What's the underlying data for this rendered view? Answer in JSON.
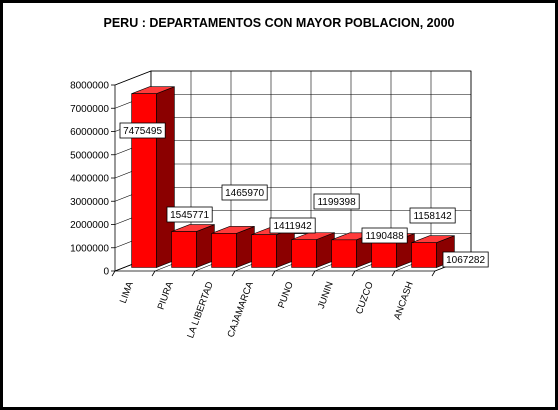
{
  "chart_data": {
    "type": "bar",
    "title": "PERU :  DEPARTAMENTOS CON MAYOR POBLACION, 2000",
    "categories": [
      "LIMA",
      "PIURA",
      "LA LIBERTAD",
      "CAJAMARCA",
      "PUNO",
      "JUNIN",
      "CUZCO",
      "ANCASH"
    ],
    "values": [
      7475495,
      1545771,
      1465970,
      1411942,
      1199398,
      1190488,
      1158142,
      1067282
    ],
    "data_labels": [
      "7475495",
      "1545771",
      "1465970",
      "1411942",
      "1199398",
      "1190488",
      "1158142",
      "1067282"
    ],
    "y_ticks": [
      "0",
      "1000000",
      "2000000",
      "3000000",
      "4000000",
      "5000000",
      "6000000",
      "7000000",
      "8000000"
    ],
    "ylim": [
      0,
      8000000
    ],
    "xlabel": "",
    "ylabel": "",
    "grid": true,
    "style": "3d-column",
    "colors": {
      "bar_front": "#ff0000",
      "bar_top": "#ff3b3b",
      "bar_side": "#8b0000",
      "background": "#000000",
      "plot": "#ffffff"
    }
  }
}
